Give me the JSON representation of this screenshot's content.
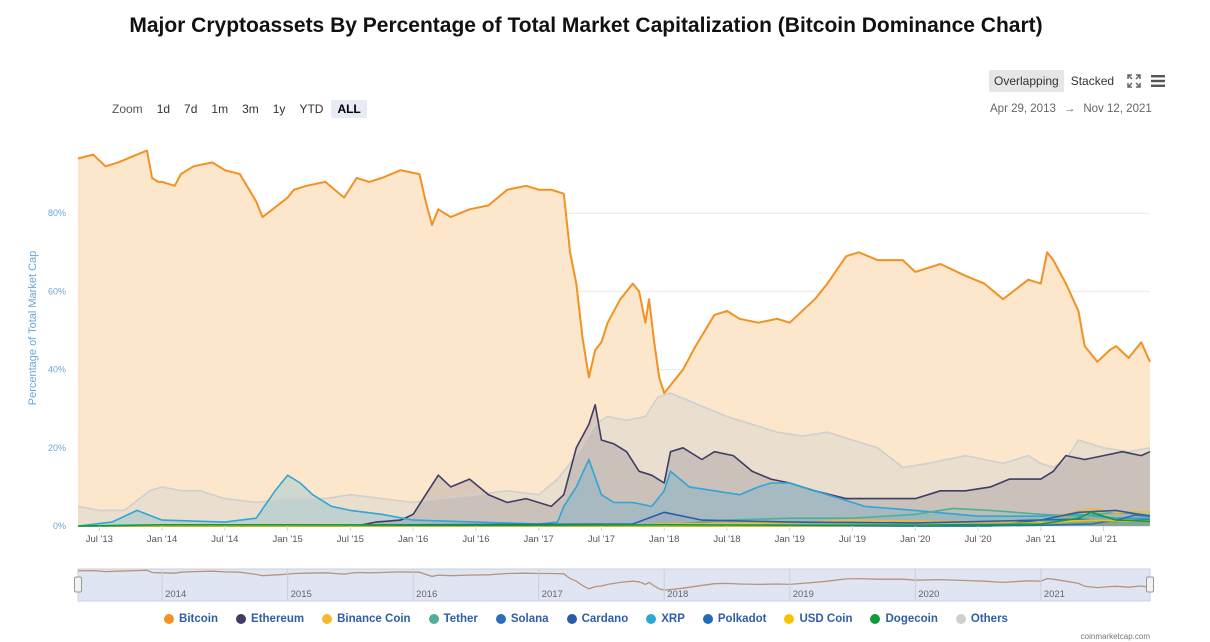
{
  "title": "Major Cryptoassets By Percentage of Total Market Capitalization (Bitcoin Dominance Chart)",
  "zoom": {
    "label": "Zoom",
    "options": [
      "1d",
      "7d",
      "1m",
      "3m",
      "1y",
      "YTD",
      "ALL"
    ],
    "active": "ALL"
  },
  "modes": {
    "overlapping": "Overlapping",
    "stacked": "Stacked",
    "active": "Overlapping"
  },
  "range": {
    "from": "Apr 29, 2013",
    "sep": "→",
    "to": "Nov 12, 2021"
  },
  "credit": "coinmarketcap.com",
  "chart_data": {
    "type": "area",
    "title": "Major Cryptoassets By Percentage of Total Market Capitalization (Bitcoin Dominance Chart)",
    "ylabel": "Percentage of Total Market Cap",
    "xlabel": "",
    "ylim": [
      0,
      100
    ],
    "yticks": [
      "0%",
      "20%",
      "40%",
      "60%",
      "80%"
    ],
    "xtick_labels": [
      "Jul '13",
      "Jan '14",
      "Jul '14",
      "Jan '15",
      "Jul '15",
      "Jan '16",
      "Jul '16",
      "Jan '17",
      "Jul '17",
      "Jan '18",
      "Jul '18",
      "Jan '19",
      "Jul '19",
      "Jan '20",
      "Jul '20",
      "Jan '21",
      "Jul '21"
    ],
    "xtick_dates": [
      2013.5,
      2014.0,
      2014.5,
      2015.0,
      2015.5,
      2016.0,
      2016.5,
      2017.0,
      2017.5,
      2018.0,
      2018.5,
      2019.0,
      2019.5,
      2020.0,
      2020.5,
      2021.0,
      2021.5
    ],
    "x_range": [
      2013.33,
      2021.87
    ],
    "navigator_labels": [
      "2014",
      "2015",
      "2016",
      "2017",
      "2018",
      "2019",
      "2020",
      "2021"
    ],
    "navigator_dates": [
      2014.0,
      2015.0,
      2016.0,
      2017.0,
      2018.0,
      2019.0,
      2020.0,
      2021.0
    ],
    "grid": true,
    "legend_position": "bottom",
    "series": [
      {
        "name": "Bitcoin",
        "color": "#f29222",
        "fill": "#fde7cc",
        "x": [
          2013.33,
          2013.45,
          2013.55,
          2013.65,
          2013.8,
          2013.88,
          2013.92,
          2013.97,
          2014.0,
          2014.1,
          2014.15,
          2014.25,
          2014.4,
          2014.5,
          2014.62,
          2014.75,
          2014.8,
          2014.92,
          2015.0,
          2015.05,
          2015.15,
          2015.3,
          2015.45,
          2015.55,
          2015.65,
          2015.75,
          2015.9,
          2016.05,
          2016.1,
          2016.15,
          2016.2,
          2016.3,
          2016.45,
          2016.6,
          2016.75,
          2016.9,
          2017.0,
          2017.1,
          2017.2,
          2017.25,
          2017.3,
          2017.35,
          2017.4,
          2017.45,
          2017.5,
          2017.55,
          2017.65,
          2017.75,
          2017.8,
          2017.85,
          2017.88,
          2017.92,
          2017.96,
          2018.0,
          2018.05,
          2018.15,
          2018.25,
          2018.4,
          2018.5,
          2018.6,
          2018.75,
          2018.9,
          2019.0,
          2019.2,
          2019.3,
          2019.45,
          2019.55,
          2019.7,
          2019.9,
          2020.0,
          2020.2,
          2020.4,
          2020.55,
          2020.7,
          2020.9,
          2021.0,
          2021.05,
          2021.1,
          2021.2,
          2021.3,
          2021.35,
          2021.45,
          2021.55,
          2021.6,
          2021.7,
          2021.8,
          2021.87
        ],
        "y": [
          94,
          95,
          92,
          93,
          95,
          96,
          89,
          88,
          88,
          87,
          90,
          92,
          93,
          91,
          90,
          83,
          79,
          82,
          84,
          86,
          87,
          88,
          84,
          89,
          88,
          89,
          91,
          90,
          83,
          77,
          81,
          79,
          81,
          82,
          86,
          87,
          86,
          86,
          85,
          70,
          62,
          48,
          38,
          45,
          47,
          52,
          58,
          62,
          60,
          52,
          58,
          47,
          38,
          34,
          36,
          40,
          46,
          54,
          55,
          53,
          52,
          53,
          52,
          58,
          62,
          69,
          70,
          68,
          68,
          65,
          67,
          64,
          62,
          58,
          63,
          62,
          70,
          68,
          62,
          55,
          46,
          42,
          45,
          46,
          43,
          47,
          42
        ]
      },
      {
        "name": "Ethereum",
        "color": "#3e3e64",
        "fill": "rgba(62,62,100,0.18)",
        "x": [
          2013.33,
          2015.55,
          2015.7,
          2015.9,
          2016.0,
          2016.1,
          2016.2,
          2016.3,
          2016.45,
          2016.6,
          2016.75,
          2016.9,
          2017.0,
          2017.1,
          2017.2,
          2017.3,
          2017.4,
          2017.45,
          2017.5,
          2017.6,
          2017.7,
          2017.8,
          2017.9,
          2018.0,
          2018.05,
          2018.15,
          2018.3,
          2018.4,
          2018.55,
          2018.7,
          2018.85,
          2019.0,
          2019.2,
          2019.45,
          2019.6,
          2019.8,
          2020.0,
          2020.2,
          2020.4,
          2020.6,
          2020.75,
          2020.9,
          2021.0,
          2021.1,
          2021.2,
          2021.35,
          2021.5,
          2021.65,
          2021.8,
          2021.87
        ],
        "y": [
          0,
          0,
          1,
          1.5,
          3,
          8,
          13,
          10,
          12,
          8,
          6,
          7,
          6,
          5,
          8,
          20,
          26,
          31,
          22,
          21,
          19,
          14,
          13,
          11,
          19,
          20,
          17,
          19,
          18,
          14,
          12,
          11,
          9,
          7,
          7,
          7,
          7,
          9,
          9,
          10,
          12,
          12,
          12,
          14,
          18,
          17,
          18,
          19,
          18,
          19
        ]
      },
      {
        "name": "Binance Coin",
        "color": "#f3ba2f",
        "fill": "rgba(243,186,47,0.12)",
        "x": [
          2013.33,
          2017.6,
          2018.0,
          2019.0,
          2019.5,
          2020.0,
          2020.5,
          2021.0,
          2021.2,
          2021.4,
          2021.6,
          2021.87
        ],
        "y": [
          0,
          0,
          0.5,
          0.8,
          1.5,
          1.2,
          1.1,
          1.3,
          3,
          4.5,
          3.5,
          3.6
        ]
      },
      {
        "name": "Tether",
        "color": "#50af95",
        "fill": "rgba(80,175,149,0.12)",
        "x": [
          2013.33,
          2018.0,
          2018.5,
          2019.0,
          2019.5,
          2020.0,
          2020.3,
          2020.6,
          2021.0,
          2021.3,
          2021.6,
          2021.87
        ],
        "y": [
          0,
          0.2,
          1.5,
          2,
          2,
          3,
          4.5,
          4,
          3,
          2.5,
          3.5,
          2.8
        ]
      },
      {
        "name": "Solana",
        "color": "#2a6fb8",
        "fill": "rgba(42,111,184,0.08)",
        "x": [
          2013.33,
          2020.5,
          2021.0,
          2021.4,
          2021.6,
          2021.75,
          2021.87
        ],
        "y": [
          0,
          0,
          0.2,
          0.5,
          1.5,
          2.8,
          2.5
        ]
      },
      {
        "name": "Cardano",
        "color": "#2e5ba8",
        "fill": "rgba(46,91,168,0.08)",
        "x": [
          2013.33,
          2017.75,
          2018.0,
          2018.3,
          2019.0,
          2020.0,
          2021.0,
          2021.3,
          2021.6,
          2021.87
        ],
        "y": [
          0,
          0.5,
          3.5,
          1.5,
          1,
          0.8,
          1.5,
          3.5,
          4,
          2.5
        ]
      },
      {
        "name": "XRP",
        "color": "#2fa6d6",
        "fill": "rgba(47,166,214,0.22)",
        "x": [
          2013.33,
          2013.6,
          2013.8,
          2014.0,
          2014.5,
          2014.75,
          2014.9,
          2015.0,
          2015.1,
          2015.2,
          2015.35,
          2015.5,
          2015.75,
          2016.0,
          2016.5,
          2017.0,
          2017.15,
          2017.2,
          2017.3,
          2017.4,
          2017.5,
          2017.6,
          2017.75,
          2017.9,
          2018.0,
          2018.05,
          2018.2,
          2018.4,
          2018.6,
          2018.75,
          2018.85,
          2019.0,
          2019.3,
          2019.6,
          2020.0,
          2020.5,
          2021.0,
          2021.3,
          2021.6,
          2021.87
        ],
        "y": [
          0,
          1,
          4,
          1.5,
          1,
          2,
          9,
          13,
          11,
          8,
          5,
          4,
          3,
          1.5,
          1,
          0.5,
          1,
          5,
          10,
          17,
          8,
          6,
          6,
          5,
          9,
          14,
          10,
          9,
          8,
          10,
          11,
          11,
          8,
          5,
          4,
          2.5,
          2.5,
          3,
          2,
          2
        ]
      },
      {
        "name": "Polkadot",
        "color": "#1e6fb5",
        "fill": "rgba(30,111,181,0.08)",
        "x": [
          2013.33,
          2020.6,
          2020.8,
          2021.0,
          2021.3,
          2021.6,
          2021.87
        ],
        "y": [
          0,
          0,
          0.8,
          1.5,
          1.8,
          1.2,
          1.6
        ]
      },
      {
        "name": "USD Coin",
        "color": "#f5c400",
        "fill": "rgba(245,196,0,0.08)",
        "x": [
          2013.33,
          2019.0,
          2020.0,
          2020.5,
          2021.0,
          2021.4,
          2021.7,
          2021.87
        ],
        "y": [
          0,
          0,
          0.2,
          0.5,
          0.8,
          1.5,
          1.2,
          1.4
        ]
      },
      {
        "name": "Dogecoin",
        "color": "#139a40",
        "fill": "rgba(19,154,64,0.10)",
        "x": [
          2013.33,
          2014.0,
          2015.0,
          2016.0,
          2017.0,
          2018.0,
          2019.0,
          2020.0,
          2021.0,
          2021.3,
          2021.4,
          2021.6,
          2021.87
        ],
        "y": [
          0,
          0.3,
          0.3,
          0.2,
          0.2,
          0.3,
          0.2,
          0.2,
          0.5,
          2,
          3.5,
          1.5,
          1.2
        ]
      },
      {
        "name": "Others",
        "color": "#cfcfcf",
        "fill": "rgba(210,210,210,0.45)",
        "x": [
          2013.33,
          2013.5,
          2013.7,
          2013.9,
          2014.0,
          2014.15,
          2014.3,
          2014.5,
          2014.75,
          2015.0,
          2015.3,
          2015.5,
          2015.75,
          2016.0,
          2016.2,
          2016.5,
          2016.75,
          2017.0,
          2017.15,
          2017.3,
          2017.45,
          2017.55,
          2017.7,
          2017.85,
          2017.95,
          2018.05,
          2018.2,
          2018.35,
          2018.5,
          2018.7,
          2018.9,
          2019.1,
          2019.3,
          2019.5,
          2019.7,
          2019.9,
          2020.1,
          2020.4,
          2020.7,
          2020.9,
          2021.0,
          2021.1,
          2021.2,
          2021.3,
          2021.5,
          2021.7,
          2021.87
        ],
        "y": [
          5,
          4,
          4,
          9,
          10,
          9,
          9,
          7,
          6,
          7,
          7,
          8,
          7,
          6,
          7,
          8,
          9,
          8,
          12,
          18,
          26,
          28,
          27,
          28,
          33,
          34,
          32,
          30,
          28,
          26,
          24,
          23,
          24,
          22,
          20,
          15,
          16,
          18,
          16,
          18,
          16,
          15,
          17,
          22,
          20,
          19,
          20
        ]
      }
    ]
  }
}
